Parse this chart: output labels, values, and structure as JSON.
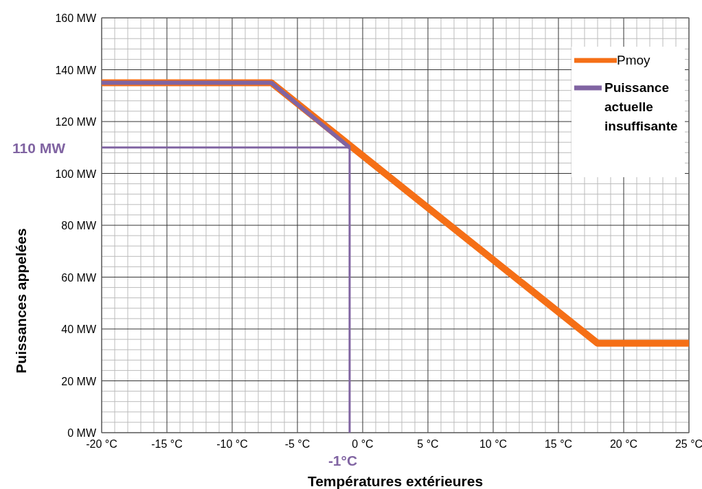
{
  "chart_data": {
    "type": "line",
    "xlabel": "Températures extérieures",
    "ylabel": "Puissances appelées",
    "xlim": [
      -20,
      25
    ],
    "ylim": [
      0,
      160
    ],
    "xticks": [
      {
        "value": -20,
        "label": "-20 °C"
      },
      {
        "value": -15,
        "label": "-15 °C"
      },
      {
        "value": -10,
        "label": "-10 °C"
      },
      {
        "value": -5,
        "label": "-5 °C"
      },
      {
        "value": 0,
        "label": "0 °C"
      },
      {
        "value": 5,
        "label": "5 °C"
      },
      {
        "value": 10,
        "label": "10 °C"
      },
      {
        "value": 15,
        "label": "15 °C"
      },
      {
        "value": 20,
        "label": "20 °C"
      },
      {
        "value": 25,
        "label": "25 °C"
      }
    ],
    "yticks": [
      {
        "value": 0,
        "label": "0 MW"
      },
      {
        "value": 20,
        "label": "20 MW"
      },
      {
        "value": 40,
        "label": "40 MW"
      },
      {
        "value": 60,
        "label": "60 MW"
      },
      {
        "value": 80,
        "label": "80 MW"
      },
      {
        "value": 100,
        "label": "100 MW"
      },
      {
        "value": 120,
        "label": "120 MW"
      },
      {
        "value": 140,
        "label": "140 MW"
      },
      {
        "value": 160,
        "label": "160 MW"
      }
    ],
    "grid": true,
    "legend": "top right",
    "series": [
      {
        "name": "Pmoy",
        "color": "#f56f16",
        "x": [
          -20,
          -7,
          18,
          25
        ],
        "values": [
          135,
          135,
          34.5,
          34.5
        ]
      },
      {
        "name": "Puissance actuelle insuffisante",
        "color": "#8064a2",
        "x": [
          -20,
          -7,
          -1
        ],
        "values": [
          135,
          135,
          110
        ]
      },
      {
        "color": "#8064a2",
        "x": [
          -20,
          -1,
          -1
        ],
        "values": [
          110,
          110,
          0
        ]
      }
    ],
    "annotations": [
      {
        "text": "110 MW",
        "x": -20,
        "y": 110
      },
      {
        "text": "-1°C",
        "x": -1,
        "y": 0
      }
    ]
  }
}
